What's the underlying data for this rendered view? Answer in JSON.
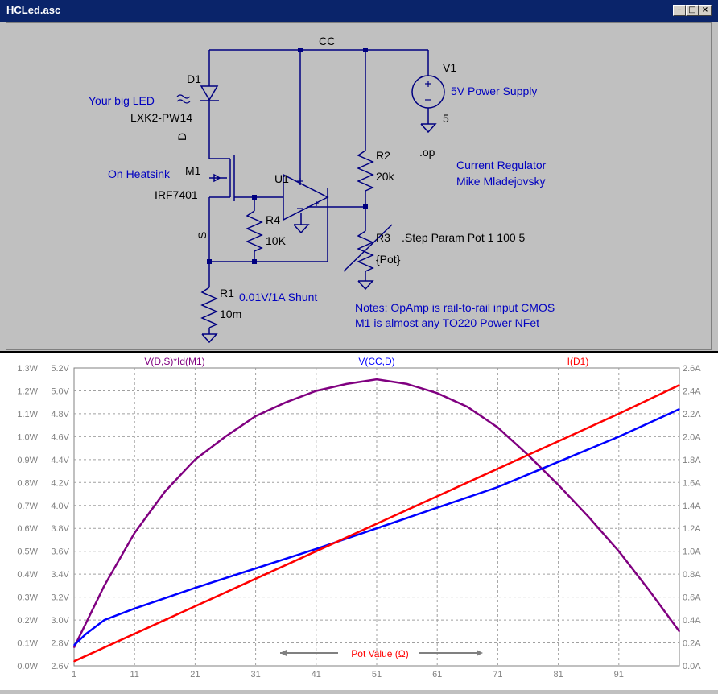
{
  "window": {
    "title": "HCLed.asc",
    "buttons": [
      "0",
      "1",
      "r"
    ]
  },
  "schematic": {
    "net_cc": "CC",
    "d1": {
      "ref": "D1",
      "model": "LXK2-PW14",
      "comment": "Your big LED"
    },
    "m1": {
      "ref": "M1",
      "model": "IRF7401",
      "comment": "On Heatsink",
      "pin_d": "D",
      "pin_s": "S"
    },
    "u1": {
      "ref": "U1"
    },
    "r4": {
      "ref": "R4",
      "value": "10K"
    },
    "r1": {
      "ref": "R1",
      "value": "10m",
      "comment": "0.01V/1A Shunt"
    },
    "r2": {
      "ref": "R2",
      "value": "20k"
    },
    "r3": {
      "ref": "R3",
      "value": "{Pot}"
    },
    "v1": {
      "ref": "V1",
      "value": "5",
      "comment": "5V Power Supply"
    },
    "directives": {
      "op": ".op",
      "step": ".Step Param Pot 1 100 5"
    },
    "title_note": [
      "Current Regulator",
      "Mike Mladejovsky"
    ],
    "notes": [
      "Notes: OpAmp is rail-to-rail input CMOS",
      "M1 is almost any TO220 Power NFet"
    ]
  },
  "colors": {
    "purple": "#800080",
    "blue": "#0000ff",
    "red": "#ff0000",
    "wire": "#000080",
    "text_blue": "#0000c0"
  },
  "chart_data": {
    "type": "line",
    "xlabel": "Pot Value (Ω)",
    "x_ticks": [
      "1",
      "11",
      "21",
      "31",
      "41",
      "51",
      "61",
      "71",
      "81",
      "91"
    ],
    "xlim": [
      1,
      101
    ],
    "y_left_w": {
      "ticks": [
        "0.0W",
        "0.1W",
        "0.2W",
        "0.3W",
        "0.4W",
        "0.5W",
        "0.6W",
        "0.7W",
        "0.8W",
        "0.9W",
        "1.0W",
        "1.1W",
        "1.2W",
        "1.3W"
      ],
      "range": [
        0,
        1.3
      ]
    },
    "y_left_v": {
      "ticks": [
        "2.6V",
        "2.8V",
        "3.0V",
        "3.2V",
        "3.4V",
        "3.6V",
        "3.8V",
        "4.0V",
        "4.2V",
        "4.4V",
        "4.6V",
        "4.8V",
        "5.0V",
        "5.2V"
      ],
      "range": [
        2.6,
        5.2
      ]
    },
    "y_right_a": {
      "ticks": [
        "0.0A",
        "0.2A",
        "0.4A",
        "0.6A",
        "0.8A",
        "1.0A",
        "1.2A",
        "1.4A",
        "1.6A",
        "1.8A",
        "2.0A",
        "2.2A",
        "2.4A",
        "2.6A"
      ],
      "range": [
        0,
        2.6
      ]
    },
    "grid": true,
    "series": [
      {
        "name": "V(D,S)*Id(M1)",
        "axis": "W",
        "color": "#800080",
        "x": [
          1,
          6,
          11,
          16,
          21,
          26,
          31,
          36,
          41,
          46,
          51,
          56,
          61,
          66,
          71,
          76,
          81,
          86,
          91,
          96,
          101
        ],
        "y": [
          0.08,
          0.35,
          0.58,
          0.76,
          0.9,
          1.0,
          1.09,
          1.15,
          1.2,
          1.23,
          1.25,
          1.23,
          1.19,
          1.13,
          1.04,
          0.92,
          0.79,
          0.65,
          0.5,
          0.33,
          0.15
        ]
      },
      {
        "name": "V(CC,D)",
        "axis": "V",
        "color": "#0000ff",
        "x": [
          1,
          3,
          6,
          11,
          21,
          31,
          41,
          51,
          61,
          71,
          81,
          91,
          101
        ],
        "y": [
          2.78,
          2.88,
          3.0,
          3.1,
          3.28,
          3.45,
          3.62,
          3.8,
          3.98,
          4.16,
          4.38,
          4.6,
          4.84
        ]
      },
      {
        "name": "I(D1)",
        "axis": "A",
        "color": "#ff0000",
        "x": [
          1,
          11,
          21,
          31,
          41,
          51,
          61,
          71,
          81,
          91,
          101
        ],
        "y": [
          0.04,
          0.28,
          0.52,
          0.76,
          1.0,
          1.24,
          1.48,
          1.72,
          1.96,
          2.2,
          2.45
        ]
      }
    ]
  }
}
